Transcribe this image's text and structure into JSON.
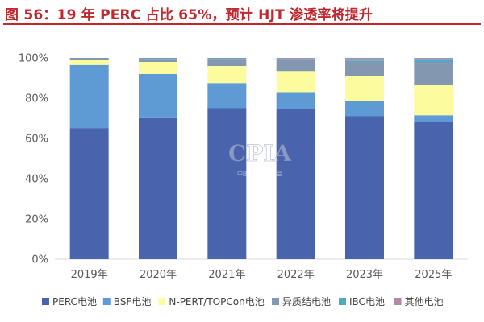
{
  "title": "图 56：19 年 PERC 占比 65%，预计 HJT 渗透率将提升",
  "watermark": {
    "main": "CPIA",
    "sub": "中国光伏行业协会"
  },
  "chart_data": {
    "type": "bar",
    "stacked": true,
    "categories": [
      "2019年",
      "2020年",
      "2021年",
      "2022年",
      "2023年",
      "2025年"
    ],
    "series": [
      {
        "name": "PERC电池",
        "color": "#4a63ad",
        "values": [
          65,
          70.5,
          75,
          74.5,
          71,
          68
        ]
      },
      {
        "name": "BSF电池",
        "color": "#5e9ad4",
        "values": [
          31.5,
          21.5,
          12.5,
          8.5,
          7.5,
          3.5
        ]
      },
      {
        "name": "N-PERT/TOPCon电池",
        "color": "#fcfc9e",
        "values": [
          2.5,
          6,
          8.5,
          10.5,
          12.5,
          15
        ]
      },
      {
        "name": "异质结电池",
        "color": "#8497b0",
        "values": [
          1,
          1.5,
          3.5,
          5.5,
          7.5,
          11.5
        ]
      },
      {
        "name": "IBC电池",
        "color": "#4bacc6",
        "values": [
          0,
          0.3,
          0.3,
          0.5,
          1,
          1.5
        ]
      },
      {
        "name": "其他电池",
        "color": "#b58aa8",
        "values": [
          0,
          0.2,
          0.2,
          0.5,
          0.5,
          0.5
        ]
      }
    ],
    "y_ticks": [
      "0%",
      "20%",
      "40%",
      "60%",
      "80%",
      "100%"
    ],
    "ylim": [
      0,
      100
    ],
    "grid": false,
    "legend": "bottom"
  }
}
